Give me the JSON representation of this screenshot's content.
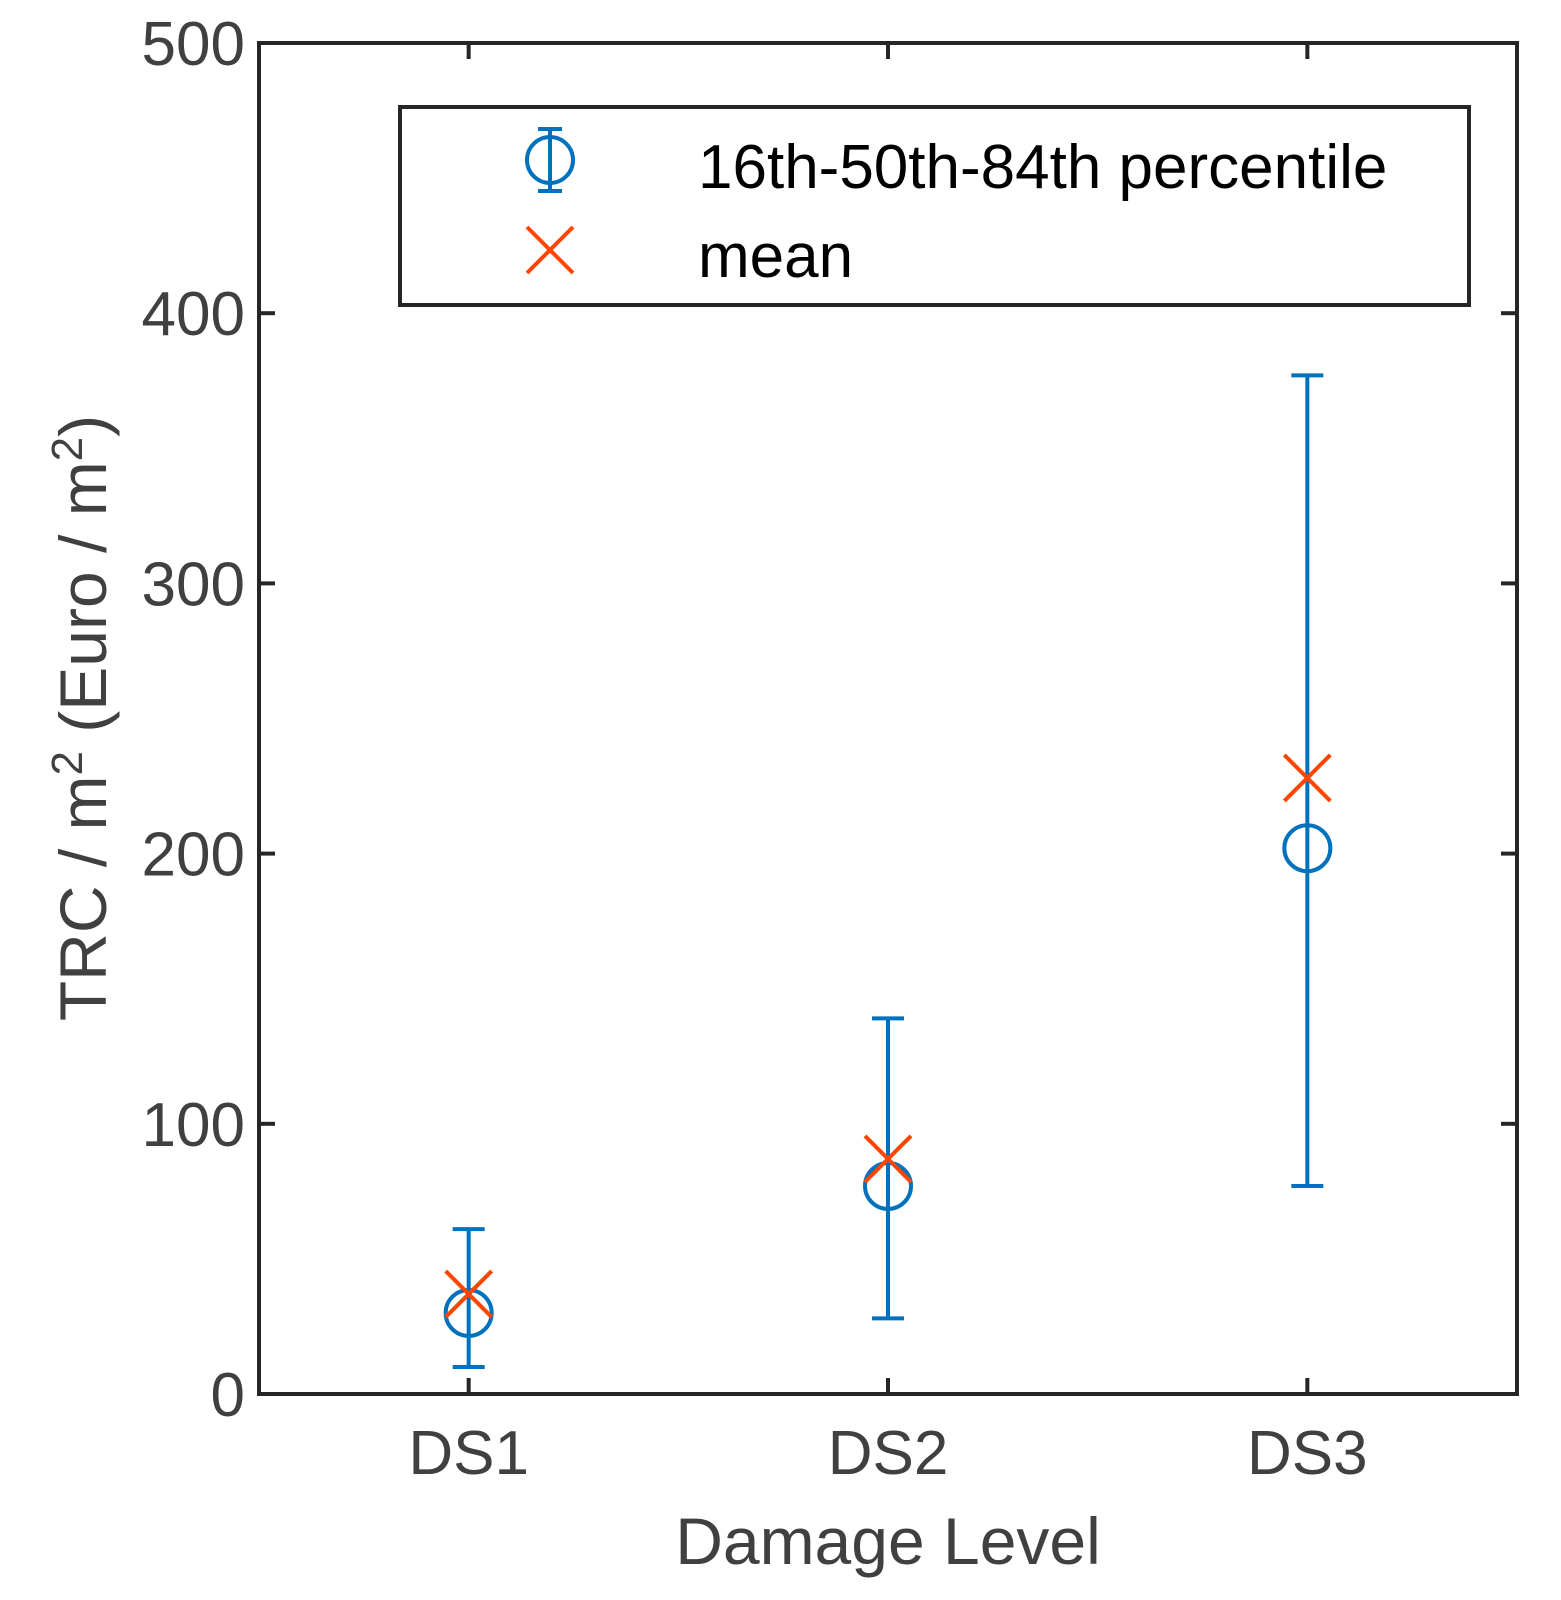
{
  "chart_data": {
    "type": "errorbar",
    "title": "",
    "xlabel": "Damage Level",
    "ylabel": {
      "prefix": "TRC / m",
      "sup1": "2",
      "middle": " (Euro / m",
      "sup2": "2",
      "suffix": ")"
    },
    "categories": [
      "DS1",
      "DS2",
      "DS3"
    ],
    "ylim": [
      0,
      500
    ],
    "yticks": [
      0,
      100,
      200,
      300,
      400,
      500
    ],
    "ytick_labels": [
      "0",
      "100",
      "200",
      "300",
      "400",
      "500"
    ],
    "legend_position": "top-right",
    "series": [
      {
        "name": "16th-50th-84th percentile",
        "color": "#0072BD",
        "marker": "circle",
        "p16": [
          10,
          28,
          77
        ],
        "p50": [
          30,
          77,
          202
        ],
        "p84": [
          61,
          139,
          377
        ]
      },
      {
        "name": "mean",
        "color": "#FF4500",
        "marker": "x",
        "values": [
          37,
          87,
          228
        ]
      }
    ]
  }
}
